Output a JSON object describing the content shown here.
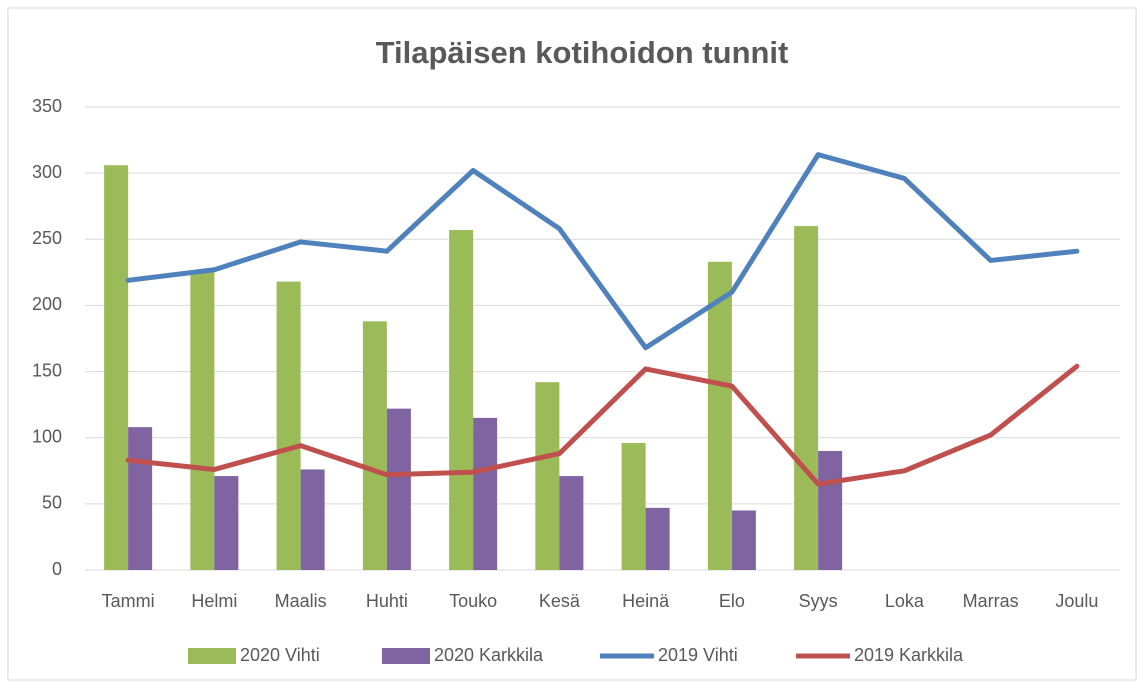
{
  "chart_data": {
    "type": "bar",
    "title": "Tilapäisen kotihoidon tunnit",
    "categories": [
      "Tammi",
      "Helmi",
      "Maalis",
      "Huhti",
      "Touko",
      "Kesä",
      "Heinä",
      "Elo",
      "Syys",
      "Loka",
      "Marras",
      "Joulu"
    ],
    "series": [
      {
        "name": "2020 Vihti",
        "type": "bar",
        "color": "#9bbb59",
        "values": [
          306,
          225,
          218,
          188,
          257,
          142,
          96,
          233,
          260,
          null,
          null,
          null
        ]
      },
      {
        "name": "2020 Karkkila",
        "type": "bar",
        "color": "#8064a2",
        "values": [
          108,
          71,
          76,
          122,
          115,
          71,
          47,
          45,
          90,
          null,
          null,
          null
        ]
      },
      {
        "name": "2019 Vihti",
        "type": "line",
        "color": "#4f81bd",
        "values": [
          219,
          227,
          248,
          241,
          302,
          258,
          168,
          210,
          314,
          296,
          234,
          241
        ]
      },
      {
        "name": "2019 Karkkila",
        "type": "line",
        "color": "#c0504d",
        "values": [
          83,
          76,
          94,
          72,
          74,
          88,
          152,
          139,
          65,
          75,
          102,
          154
        ]
      }
    ],
    "ylim": [
      0,
      350
    ],
    "yticks": [
      0,
      50,
      100,
      150,
      200,
      250,
      300,
      350
    ],
    "grid": true,
    "legend": "bottom"
  }
}
